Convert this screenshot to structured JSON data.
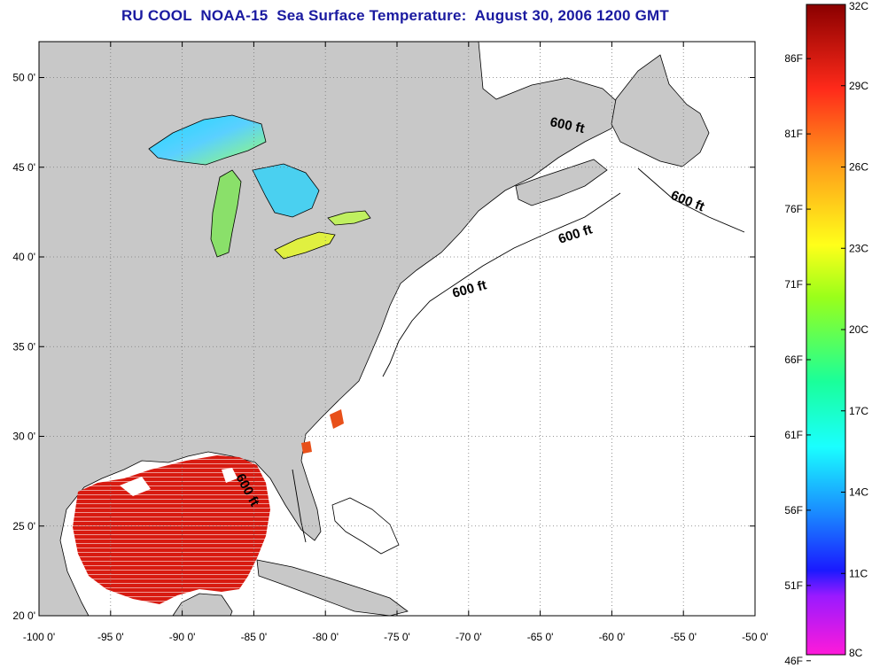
{
  "title": "RU COOL  NOAA-15  Sea Surface Temperature:  August 30, 2006 1200 GMT",
  "map": {
    "lon_range": [
      -100,
      -50
    ],
    "lat_range": [
      20,
      52
    ],
    "x_ticks": [
      "-100 0'",
      "-95 0'",
      "-90 0'",
      "-85 0'",
      "-80 0'",
      "-75 0'",
      "-70 0'",
      "-65 0'",
      "-60 0'",
      "-55 0'",
      "-50 0'"
    ],
    "y_ticks": [
      "50 0'",
      "45 0'",
      "40 0'",
      "35 0'",
      "30 0'",
      "25 0'",
      "20 0'"
    ],
    "grid": "dotted",
    "land_color": "#c8c8c8",
    "ocean_color": "#ffffff",
    "contour_labels": [
      "600 ft",
      "600 ft",
      "600 ft",
      "600 ft",
      "600 ft"
    ]
  },
  "colorbar": {
    "celsius": [
      "32C",
      "29C",
      "26C",
      "23C",
      "20C",
      "17C",
      "14C",
      "11C",
      "8C"
    ],
    "fahrenheit": [
      "86F",
      "81F",
      "76F",
      "71F",
      "66F",
      "61F",
      "56F",
      "51F",
      "46F"
    ]
  }
}
